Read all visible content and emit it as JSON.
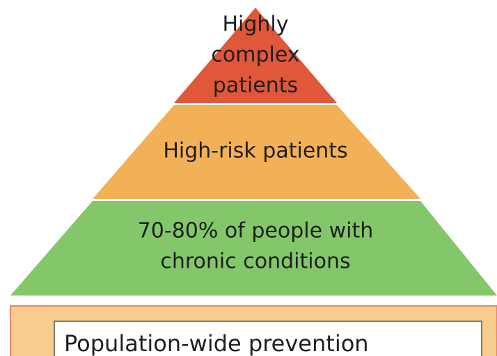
{
  "pyramid": {
    "levels": [
      {
        "lines": [
          "Highly",
          "complex",
          "patients"
        ]
      },
      {
        "lines": [
          "High-risk patients"
        ]
      },
      {
        "lines": [
          "70-80% of people with",
          "chronic conditions"
        ]
      }
    ]
  },
  "base": {
    "label": "Population-wide prevention"
  }
}
